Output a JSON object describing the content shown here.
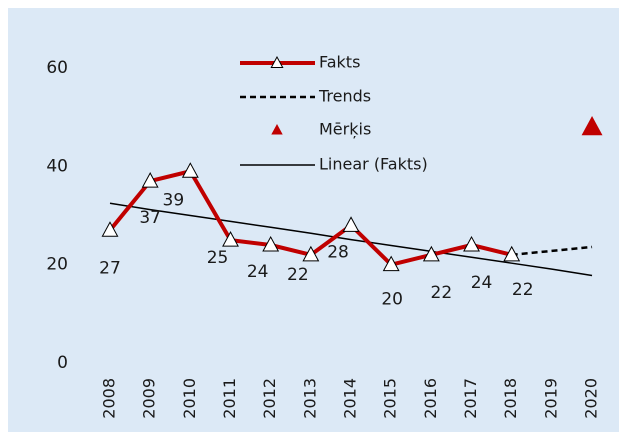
{
  "chart_data": {
    "type": "line",
    "categories": [
      "2008",
      "2009",
      "2010",
      "2011",
      "2012",
      "2013",
      "2014",
      "2015",
      "2016",
      "2017",
      "2018",
      "2019",
      "2020"
    ],
    "series": [
      {
        "name": "Fakts",
        "color": "#c00000",
        "marker": "open-triangle",
        "line": "solid-thick",
        "values": [
          27,
          37,
          39,
          25,
          24,
          22,
          28,
          20,
          22,
          24,
          22,
          null,
          null
        ]
      },
      {
        "name": "Trends",
        "color": "#000000",
        "line": "dashed",
        "values": [
          null,
          null,
          null,
          null,
          null,
          null,
          null,
          null,
          null,
          null,
          22,
          22.8,
          23.6
        ]
      },
      {
        "name": "Mērķis",
        "color": "#c00000",
        "marker": "filled-triangle",
        "line": "none",
        "values": [
          null,
          null,
          null,
          null,
          null,
          null,
          null,
          null,
          null,
          null,
          null,
          null,
          48
        ]
      },
      {
        "name": "Linear (Fakts)",
        "color": "#000000",
        "line": "thin",
        "values": [
          32.5,
          31.2,
          30.0,
          28.8,
          27.6,
          26.4,
          25.1,
          23.9,
          22.7,
          21.5,
          20.3,
          19.1,
          17.8
        ]
      }
    ],
    "ylim": [
      0,
      60
    ],
    "yticks": [
      0,
      20,
      40,
      60
    ],
    "grid": false,
    "legend": "top",
    "data_labels_series": 0
  }
}
